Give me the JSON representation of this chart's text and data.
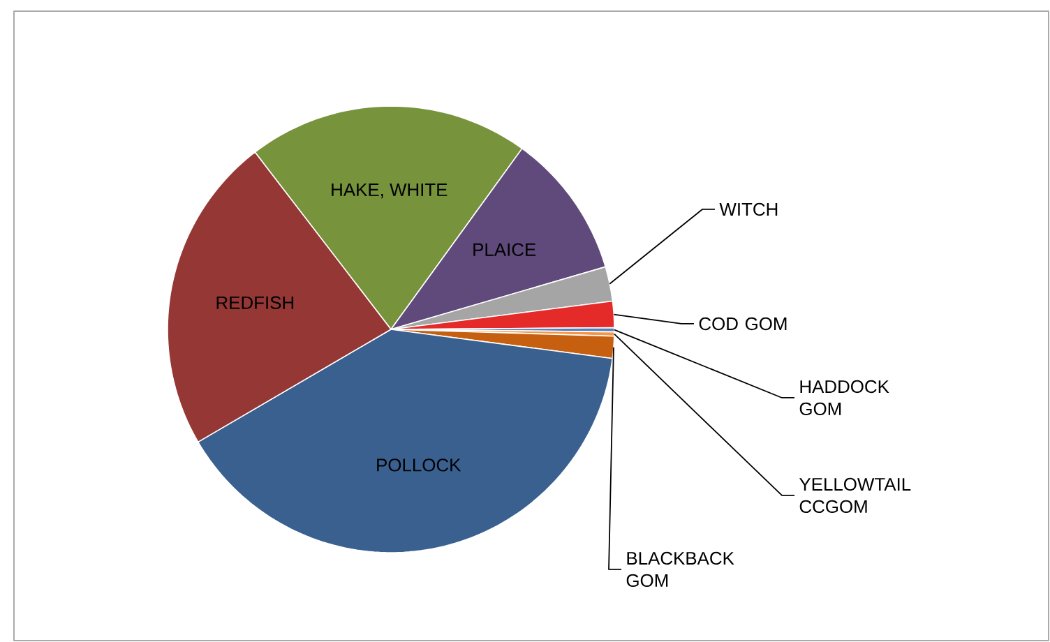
{
  "chart_data": {
    "type": "pie",
    "categories": [
      "HAKE, WHITE",
      "PLAICE",
      "WITCH",
      "COD GOM",
      "HADDOCK GOM",
      "YELLOWTAIL CCGOM",
      "BLACKBACK GOM",
      "POLLOCK",
      "REDFISH"
    ],
    "values": [
      20.4,
      10.5,
      2.5,
      1.9,
      0.3,
      0.3,
      1.6,
      39.5,
      23
    ],
    "colors": [
      "#77933c",
      "#604a7b",
      "#a5a5a5",
      "#e52a2a",
      "#4f81bd",
      "#f79646",
      "#c65f10",
      "#3a6090",
      "#953735"
    ]
  }
}
